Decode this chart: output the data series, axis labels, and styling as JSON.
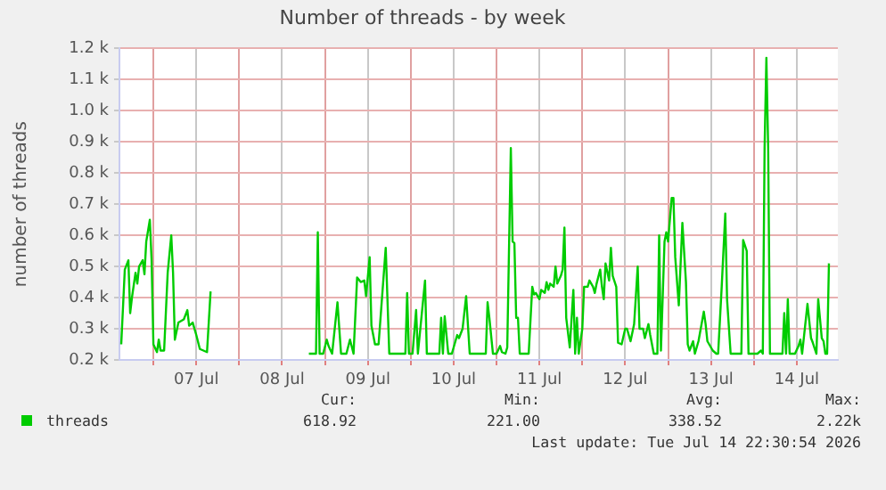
{
  "chart_data": {
    "type": "line",
    "title": "Number of threads - by week",
    "ylabel": "number of threads",
    "xlim": [
      "2026-07-06T14:30",
      "2026-07-14T23:30"
    ],
    "xticks": [
      {
        "value": "2026-07-07T00:00",
        "label": null
      },
      {
        "value": "2026-07-07T12:00",
        "label": "07 Jul"
      },
      {
        "value": "2026-07-08T00:00",
        "label": null
      },
      {
        "value": "2026-07-08T12:00",
        "label": "08 Jul"
      },
      {
        "value": "2026-07-09T00:00",
        "label": null
      },
      {
        "value": "2026-07-09T12:00",
        "label": "09 Jul"
      },
      {
        "value": "2026-07-10T00:00",
        "label": null
      },
      {
        "value": "2026-07-10T12:00",
        "label": "10 Jul"
      },
      {
        "value": "2026-07-11T00:00",
        "label": null
      },
      {
        "value": "2026-07-11T12:00",
        "label": "11 Jul"
      },
      {
        "value": "2026-07-12T00:00",
        "label": null
      },
      {
        "value": "2026-07-12T12:00",
        "label": "12 Jul"
      },
      {
        "value": "2026-07-13T00:00",
        "label": null
      },
      {
        "value": "2026-07-13T12:00",
        "label": "13 Jul"
      },
      {
        "value": "2026-07-14T00:00",
        "label": null
      },
      {
        "value": "2026-07-14T12:00",
        "label": "14 Jul"
      }
    ],
    "ylim": [
      200,
      1200
    ],
    "yticks": [
      {
        "value": 200,
        "label": "0.2 k"
      },
      {
        "value": 300,
        "label": "0.3 k"
      },
      {
        "value": 400,
        "label": "0.4 k"
      },
      {
        "value": 500,
        "label": "0.5 k"
      },
      {
        "value": 600,
        "label": "0.6 k"
      },
      {
        "value": 700,
        "label": "0.7 k"
      },
      {
        "value": 800,
        "label": "0.8 k"
      },
      {
        "value": 900,
        "label": "0.9 k"
      },
      {
        "value": 1000,
        "label": "1.0 k"
      },
      {
        "value": 1100,
        "label": "1.1 k"
      },
      {
        "value": 1200,
        "label": "1.2 k"
      }
    ],
    "grid": true,
    "legend": "bottom",
    "marker": "none",
    "line_style": "solid",
    "annotations": [
      "Cur:",
      "618.92",
      "Min:",
      "221.00",
      "Avg:",
      "338.52",
      "Max:",
      "2.22k",
      "Last update: Tue Jul 14 22:30:54 2026"
    ],
    "series": [
      {
        "name": "threads",
        "color": "#00cc00",
        "x": [
          "2026-07-06T15:00",
          "2026-07-06T16:00",
          "2026-07-06T17:00",
          "2026-07-06T17:30",
          "2026-07-06T18:00",
          "2026-07-06T19:00",
          "2026-07-06T19:30",
          "2026-07-06T20:00",
          "2026-07-06T21:00",
          "2026-07-06T21:30",
          "2026-07-06T22:00",
          "2026-07-06T23:00",
          "2026-07-06T23:30",
          "2026-07-07T00:00",
          "2026-07-07T01:00",
          "2026-07-07T01:30",
          "2026-07-07T02:00",
          "2026-07-07T03:00",
          "2026-07-07T04:00",
          "2026-07-07T05:00",
          "2026-07-07T05:30",
          "2026-07-07T06:00",
          "2026-07-07T07:00",
          "2026-07-07T08:30",
          "2026-07-07T09:30",
          "2026-07-07T10:00",
          "2026-07-07T11:00",
          "2026-07-07T12:00",
          "2026-07-07T13:00",
          "2026-07-07T15:00",
          "2026-07-07T16:00",
          "2026-07-08T06:00",
          "2026-07-08T19:30",
          "2026-07-08T21:30",
          "2026-07-08T22:00",
          "2026-07-08T22:30",
          "2026-07-08T23:30",
          "2026-07-09T00:30",
          "2026-07-09T01:00",
          "2026-07-09T02:00",
          "2026-07-09T03:30",
          "2026-07-09T04:30",
          "2026-07-09T06:00",
          "2026-07-09T07:00",
          "2026-07-09T08:00",
          "2026-07-09T09:00",
          "2026-07-09T10:00",
          "2026-07-09T11:00",
          "2026-07-09T11:30",
          "2026-07-09T12:30",
          "2026-07-09T13:00",
          "2026-07-09T14:00",
          "2026-07-09T15:00",
          "2026-07-09T16:00",
          "2026-07-09T17:00",
          "2026-07-09T18:00",
          "2026-07-09T22:30",
          "2026-07-09T23:00",
          "2026-07-09T23:30",
          "2026-07-10T00:30",
          "2026-07-10T01:30",
          "2026-07-10T02:00",
          "2026-07-10T04:00",
          "2026-07-10T04:30",
          "2026-07-10T08:00",
          "2026-07-10T08:30",
          "2026-07-10T09:00",
          "2026-07-10T09:30",
          "2026-07-10T10:30",
          "2026-07-10T11:30",
          "2026-07-10T13:00",
          "2026-07-10T13:30",
          "2026-07-10T14:30",
          "2026-07-10T15:30",
          "2026-07-10T16:30",
          "2026-07-10T21:00",
          "2026-07-10T21:30",
          "2026-07-10T22:00",
          "2026-07-10T23:00",
          "2026-07-11T00:00",
          "2026-07-11T01:00",
          "2026-07-11T01:30",
          "2026-07-11T02:30",
          "2026-07-11T03:00",
          "2026-07-11T04:00",
          "2026-07-11T04:30",
          "2026-07-11T05:00",
          "2026-07-11T05:30",
          "2026-07-11T06:00",
          "2026-07-11T06:30",
          "2026-07-11T09:00",
          "2026-07-11T10:00",
          "2026-07-11T10:30",
          "2026-07-11T11:00",
          "2026-07-11T12:00",
          "2026-07-11T12:30",
          "2026-07-11T13:30",
          "2026-07-11T14:00",
          "2026-07-11T14:30",
          "2026-07-11T15:00",
          "2026-07-11T16:00",
          "2026-07-11T16:30",
          "2026-07-11T17:00",
          "2026-07-11T18:00",
          "2026-07-11T18:30",
          "2026-07-11T19:00",
          "2026-07-11T19:30",
          "2026-07-11T20:30",
          "2026-07-11T21:30",
          "2026-07-11T22:00",
          "2026-07-11T22:30",
          "2026-07-11T23:00",
          "2026-07-12T00:00",
          "2026-07-12T00:30",
          "2026-07-12T01:30",
          "2026-07-12T02:00",
          "2026-07-12T03:00",
          "2026-07-12T03:30",
          "2026-07-12T04:00",
          "2026-07-12T05:00",
          "2026-07-12T05:30",
          "2026-07-12T06:00",
          "2026-07-12T06:30",
          "2026-07-12T07:30",
          "2026-07-12T08:00",
          "2026-07-12T08:30",
          "2026-07-12T09:30",
          "2026-07-12T10:00",
          "2026-07-12T11:00",
          "2026-07-12T12:00",
          "2026-07-12T12:30",
          "2026-07-12T13:30",
          "2026-07-12T14:30",
          "2026-07-12T15:30",
          "2026-07-12T16:00",
          "2026-07-12T17:00",
          "2026-07-12T17:30",
          "2026-07-12T18:30",
          "2026-07-12T19:00",
          "2026-07-12T20:00",
          "2026-07-12T21:00",
          "2026-07-12T21:30",
          "2026-07-12T22:00",
          "2026-07-12T23:00",
          "2026-07-12T23:30",
          "2026-07-13T00:00",
          "2026-07-13T01:00",
          "2026-07-13T01:30",
          "2026-07-13T02:00",
          "2026-07-13T03:00",
          "2026-07-13T04:00",
          "2026-07-13T05:00",
          "2026-07-13T05:30",
          "2026-07-13T06:00",
          "2026-07-13T07:00",
          "2026-07-13T07:30",
          "2026-07-13T08:30",
          "2026-07-13T10:00",
          "2026-07-13T10:30",
          "2026-07-13T11:00",
          "2026-07-13T12:00",
          "2026-07-13T12:30",
          "2026-07-13T13:30",
          "2026-07-13T14:00",
          "2026-07-13T15:00",
          "2026-07-13T16:00",
          "2026-07-13T16:30",
          "2026-07-13T17:30",
          "2026-07-13T20:30",
          "2026-07-13T21:00",
          "2026-07-13T22:00",
          "2026-07-13T22:30",
          "2026-07-14T01:00",
          "2026-07-14T02:00",
          "2026-07-14T02:30",
          "2026-07-14T03:00",
          "2026-07-14T03:30",
          "2026-07-14T04:00",
          "2026-07-14T04:30",
          "2026-07-14T08:00",
          "2026-07-14T08:30",
          "2026-07-14T09:00",
          "2026-07-14T09:30",
          "2026-07-14T10:00",
          "2026-07-14T11:30",
          "2026-07-14T12:30",
          "2026-07-14T13:00",
          "2026-07-14T13:30",
          "2026-07-14T15:00",
          "2026-07-14T16:00",
          "2026-07-14T16:30",
          "2026-07-14T17:30",
          "2026-07-14T18:00",
          "2026-07-14T19:00",
          "2026-07-14T19:30",
          "2026-07-14T20:00",
          "2026-07-14T20:30",
          "2026-07-14T21:00"
        ],
        "values": [
          250,
          490,
          520,
          350,
          400,
          480,
          445,
          500,
          520,
          475,
          580,
          650,
          520,
          250,
          225,
          265,
          230,
          230,
          480,
          600,
          480,
          265,
          320,
          330,
          360,
          310,
          320,
          280,
          235,
          225,
          420,
          null,
          220,
          220,
          610,
          220,
          220,
          265,
          245,
          220,
          385,
          220,
          220,
          265,
          220,
          465,
          450,
          455,
          405,
          530,
          310,
          250,
          250,
          405,
          560,
          220,
          220,
          415,
          220,
          220,
          360,
          220,
          455,
          220,
          220,
          335,
          220,
          340,
          220,
          220,
          280,
          270,
          300,
          405,
          220,
          220,
          385,
          335,
          220,
          220,
          245,
          225,
          220,
          240,
          880,
          580,
          575,
          335,
          335,
          220,
          220,
          435,
          410,
          415,
          395,
          425,
          415,
          450,
          425,
          445,
          435,
          500,
          445,
          470,
          490,
          625,
          335,
          240,
          425,
          220,
          335,
          220,
          300,
          435,
          435,
          455,
          435,
          415,
          445,
          490,
          435,
          395,
          510,
          455,
          560,
          470,
          435,
          255,
          250,
          300,
          300,
          260,
          315,
          500,
          300,
          300,
          270,
          315,
          280,
          220,
          220,
          600,
          230,
          580,
          610,
          580,
          720,
          720,
          530,
          375,
          640,
          450,
          250,
          230,
          260,
          220,
          260,
          355,
          315,
          260,
          240,
          230,
          220,
          220,
          435,
          670,
          395,
          220,
          220,
          585,
          550,
          220,
          220,
          230,
          220,
          880,
          1170,
          880,
          220,
          220,
          350,
          220,
          395,
          220,
          220,
          245,
          265,
          220,
          380,
          270,
          255,
          220,
          395,
          270,
          260,
          220,
          220,
          510
        ]
      }
    ]
  }
}
